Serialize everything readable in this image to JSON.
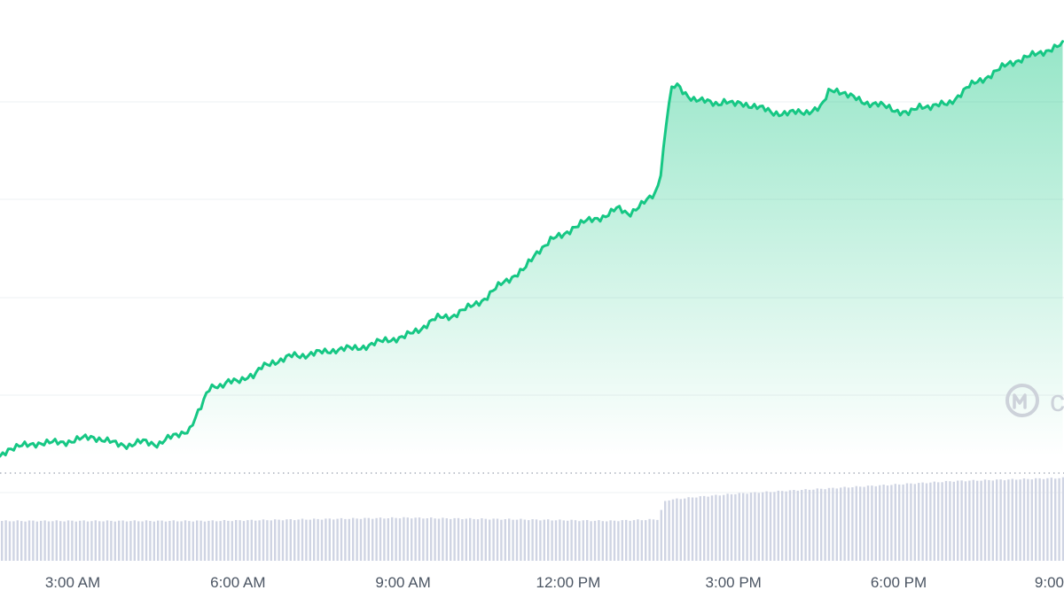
{
  "chart_data": {
    "type": "area",
    "title": "",
    "xlabel": "",
    "ylabel": "",
    "x_ticks": [
      "3:00 AM",
      "6:00 AM",
      "9:00 AM",
      "12:00 PM",
      "3:00 PM",
      "6:00 PM",
      "9:00"
    ],
    "x_tick_hours": [
      3,
      6,
      9,
      12,
      15,
      18,
      21
    ],
    "x_range_hours": [
      1.68,
      21.0
    ],
    "y_range_relative": [
      0,
      110
    ],
    "grid": "horizontal",
    "y_axis_labels_visible": false,
    "dotted_baseline": true,
    "colors": {
      "line": "#16c784",
      "fill_top": "#16c784",
      "grid": "#eef0f3",
      "volume": "#cfd4e3",
      "baseline": "#aab0bb",
      "axis_text": "#4b5563",
      "watermark": "#cdd2da"
    },
    "watermark_text": "c",
    "watermark_icon": "coinmarketcap-logo-icon",
    "price": {
      "hours": [
        1.68,
        1.82,
        2.09,
        2.36,
        2.59,
        2.99,
        3.36,
        3.6,
        3.77,
        4.04,
        4.28,
        4.55,
        4.72,
        4.89,
        5.13,
        5.36,
        5.46,
        5.56,
        5.7,
        5.83,
        6.0,
        6.17,
        6.3,
        6.45,
        6.62,
        6.8,
        7.0,
        7.2,
        7.5,
        7.8,
        8.1,
        8.4,
        8.7,
        9.0,
        9.3,
        9.6,
        9.9,
        10.2,
        10.5,
        10.8,
        11.0,
        11.2,
        11.45,
        11.7,
        11.9,
        12.1,
        12.3,
        12.5,
        12.7,
        12.9,
        13.1,
        13.3,
        13.45,
        13.6,
        13.7,
        13.76,
        13.86,
        13.96,
        14.1,
        14.26,
        14.4,
        14.55,
        14.7,
        14.85,
        15.0,
        15.15,
        15.4,
        15.7,
        16.0,
        16.3,
        16.6,
        16.75,
        16.9,
        17.1,
        17.4,
        17.6,
        17.8,
        18.0,
        18.2,
        18.4,
        18.56,
        18.73,
        18.9,
        19.06,
        19.25,
        19.45,
        19.7,
        20.0,
        20.3,
        20.6,
        21.0
      ],
      "values": [
        0,
        3.2,
        4.4,
        5.8,
        5.7,
        6.6,
        8.6,
        6.7,
        5.5,
        4.8,
        6.3,
        5.3,
        7.5,
        9.1,
        12.0,
        22.3,
        29.2,
        31.2,
        30.4,
        31.9,
        32.8,
        34.9,
        34.8,
        38.9,
        41.0,
        41.6,
        43.8,
        43.9,
        45.0,
        46.4,
        46.8,
        48.2,
        50.6,
        51.5,
        55.2,
        59.9,
        61.0,
        64.6,
        68.7,
        75.2,
        78.2,
        81.0,
        89.2,
        94.2,
        95.8,
        99.6,
        101.7,
        103.2,
        104.6,
        107.6,
        105.4,
        108.6,
        111.2,
        114.9,
        125.6,
        141.3,
        158.3,
        161.2,
        158.0,
        155.4,
        154.3,
        153.7,
        153.2,
        154.4,
        152.5,
        153.2,
        152.0,
        149.2,
        148.9,
        149.5,
        151.3,
        159.2,
        159.1,
        156.3,
        153.6,
        152.8,
        151.5,
        149.9,
        148.7,
        152.2,
        152.0,
        152.4,
        152.8,
        156.1,
        160.1,
        162.8,
        165.9,
        170.6,
        172.9,
        175.5,
        178.6
      ]
    },
    "volume": {
      "hours": [
        1.68,
        5.5,
        7.2,
        9.0,
        11.0,
        12.7,
        13.6,
        13.75,
        14.3,
        15.0,
        16.0,
        17.0,
        18.0,
        19.0,
        20.0,
        21.0
      ],
      "values": [
        25,
        25,
        26,
        27,
        26,
        25,
        26,
        38,
        40,
        42,
        44,
        46,
        48,
        50,
        51,
        52
      ]
    }
  }
}
